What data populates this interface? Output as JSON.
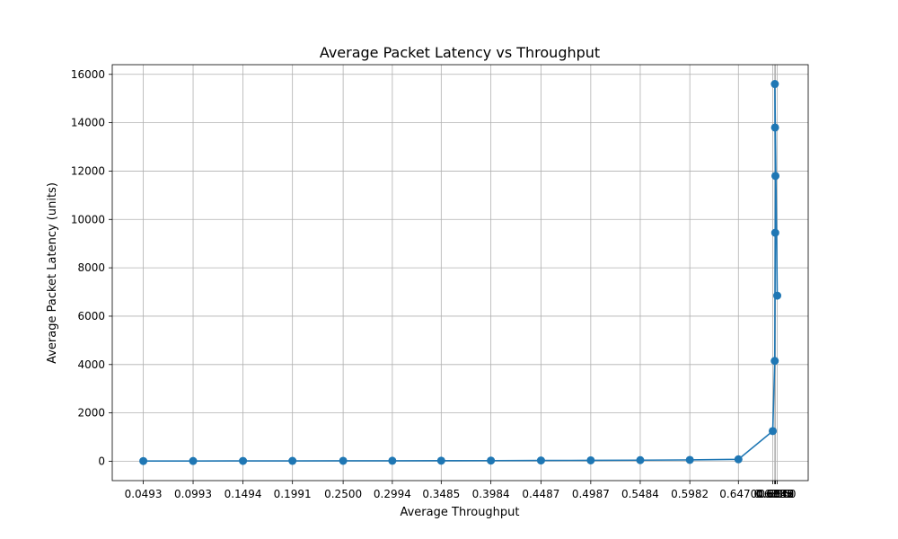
{
  "chart_data": {
    "type": "line",
    "title": "Average Packet Latency vs Throughput",
    "xlabel": "Average Throughput",
    "ylabel": "Average Packet Latency (units)",
    "grid": true,
    "color": "#1f77b4",
    "x": [
      0.0493,
      0.0993,
      0.1494,
      0.1991,
      0.25,
      0.2994,
      0.3485,
      0.3984,
      0.4487,
      0.4987,
      0.5484,
      0.5982,
      0.647,
      0.6815,
      0.6835,
      0.684,
      0.6842,
      0.6838,
      0.6836,
      0.686
    ],
    "y": [
      10,
      12,
      14,
      16,
      18,
      20,
      23,
      27,
      32,
      38,
      45,
      55,
      80,
      1250,
      4150,
      9450,
      11800,
      13800,
      15600,
      6850
    ],
    "x_tick_labels": [
      "0.0493",
      "0.0993",
      "0.1494",
      "0.1991",
      "0.2500",
      "0.2994",
      "0.3485",
      "0.3984",
      "0.4487",
      "0.4987",
      "0.5484",
      "0.5982",
      "0.6470",
      "0.6815",
      "0.6835",
      "0.6840",
      "0.6842",
      "0.6838",
      "0.6836",
      "0.6860"
    ],
    "y_ticks": [
      0,
      2000,
      4000,
      6000,
      8000,
      10000,
      12000,
      14000,
      16000
    ],
    "xlim": [
      0.0181,
      0.7171
    ],
    "ylim": [
      -800,
      16400
    ]
  }
}
